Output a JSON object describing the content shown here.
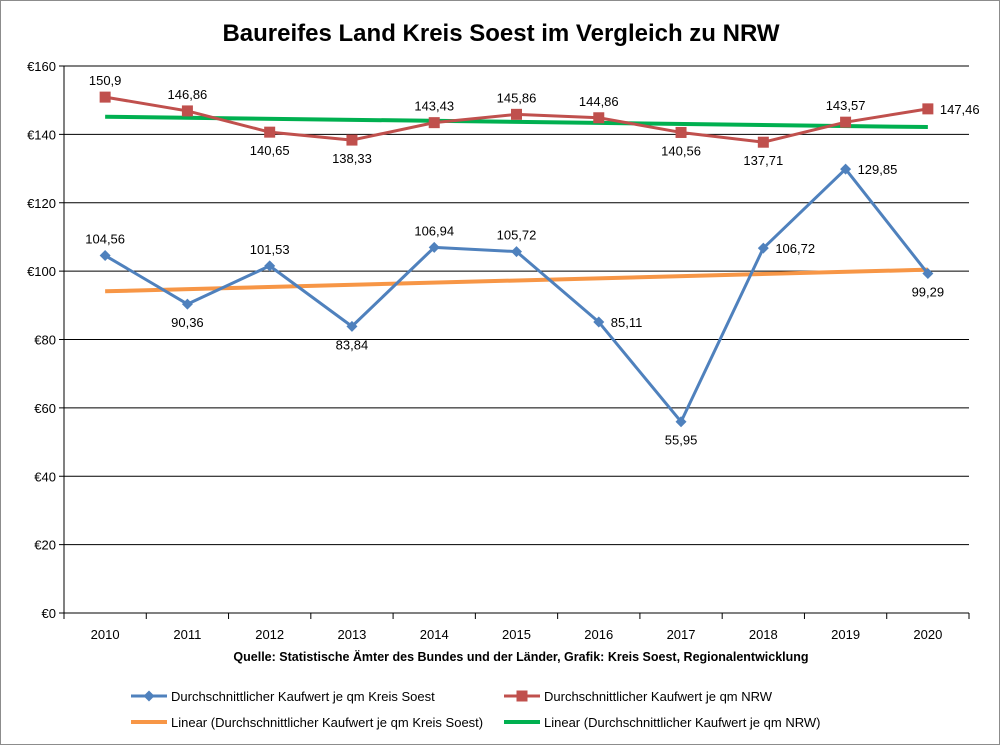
{
  "chart_data": {
    "type": "line",
    "title": "Baureifes Land Kreis Soest im Vergleich zu NRW",
    "x": [
      "2010",
      "2011",
      "2012",
      "2013",
      "2014",
      "2015",
      "2016",
      "2017",
      "2018",
      "2019",
      "2020"
    ],
    "ylim": [
      0,
      160
    ],
    "ytick_labels": [
      "€0",
      "€20",
      "€40",
      "€60",
      "€80",
      "€100",
      "€120",
      "€140",
      "€160"
    ],
    "ytick_values": [
      0,
      20,
      40,
      60,
      80,
      100,
      120,
      140,
      160
    ],
    "grid": true,
    "series": [
      {
        "name": "Durchschnittlicher Kaufwert je qm Kreis Soest",
        "color": "#4F81BD",
        "marker": "diamond",
        "values": [
          104.56,
          90.36,
          101.53,
          83.84,
          106.94,
          105.72,
          85.11,
          55.95,
          106.72,
          129.85,
          99.29
        ],
        "labels": [
          "104,56",
          "90,36",
          "101,53",
          "83,84",
          "106,94",
          "105,72",
          "85,11",
          "55,95",
          "106,72",
          "129,85",
          "99,29"
        ]
      },
      {
        "name": "Durchschnittlicher Kaufwert je qm NRW",
        "color": "#C0504D",
        "marker": "square",
        "values": [
          150.9,
          146.86,
          140.65,
          138.33,
          143.43,
          145.86,
          144.86,
          140.56,
          137.71,
          143.57,
          147.46
        ],
        "labels": [
          "150,9",
          "146,86",
          "140,65",
          "138,33",
          "143,43",
          "145,86",
          "144,86",
          "140,56",
          "137,71",
          "143,57",
          "147,46"
        ]
      },
      {
        "name": "Linear (Durchschnittlicher Kaufwert je qm Kreis Soest)",
        "color": "#F79646",
        "trend_of": 0
      },
      {
        "name": "Linear (Durchschnittlicher Kaufwert je qm NRW)",
        "color": "#00B050",
        "trend_of": 1
      }
    ],
    "source_note": "Quelle: Statistische Ämter des Bundes und der Länder, Grafik: Kreis Soest, Regionalentwicklung",
    "legend_position": "bottom"
  }
}
